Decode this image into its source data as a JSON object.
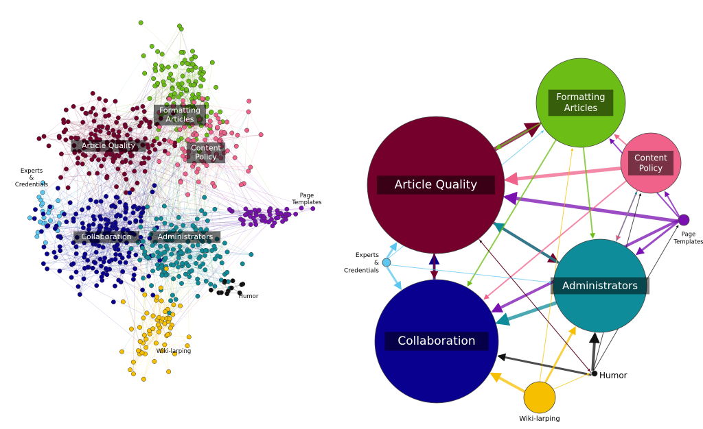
{
  "left_network": {
    "labels": [
      {
        "lines": [
          "Formatting",
          "Articles"
        ]
      },
      {
        "lines": [
          "Article Quality"
        ]
      },
      {
        "lines": [
          "Content",
          "Policy"
        ]
      },
      {
        "lines": [
          "Experts",
          "&",
          "Credentials"
        ]
      },
      {
        "lines": [
          "Page",
          "Templates"
        ]
      },
      {
        "lines": [
          "Collaboration"
        ]
      },
      {
        "lines": [
          "Administrators"
        ]
      },
      {
        "lines": [
          "Humor"
        ]
      },
      {
        "lines": [
          "Wiki-larping"
        ]
      }
    ]
  },
  "right_network": {
    "nodes": [
      {
        "lines": [
          "Formatting",
          "Articles"
        ]
      },
      {
        "lines": [
          "Article Quality"
        ]
      },
      {
        "lines": [
          "Content",
          "Policy"
        ]
      },
      {
        "lines": [
          "Experts",
          "&",
          "Credentials"
        ]
      },
      {
        "lines": [
          "Page",
          "Templates"
        ]
      },
      {
        "lines": [
          "Collaboration"
        ]
      },
      {
        "lines": [
          "Administrators"
        ]
      },
      {
        "lines": [
          "Humor"
        ]
      },
      {
        "lines": [
          "Wiki-larping"
        ]
      }
    ]
  }
}
